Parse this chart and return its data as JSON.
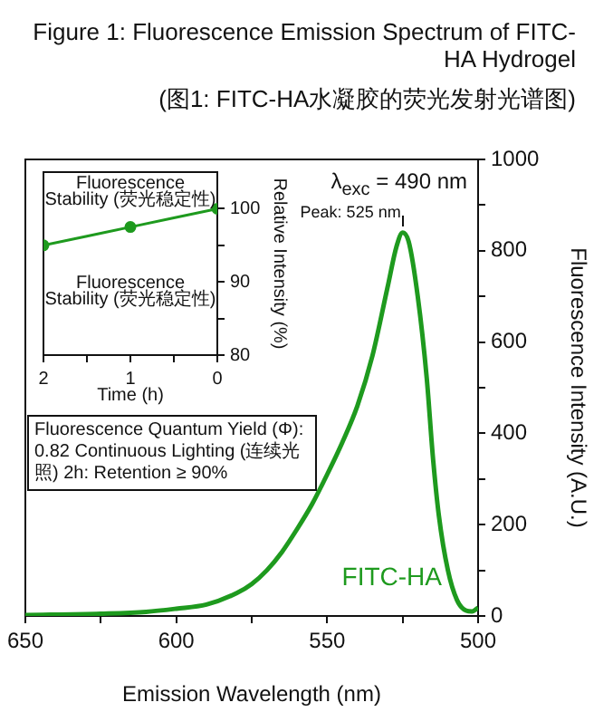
{
  "chart_data": [
    {
      "type": "line",
      "title": "Figure 1: Fluorescence Emission Spectrum of FITC-HA Hydrogel",
      "subtitle": "(图1: FITC-HA水凝胶的荧光发射光谱图)",
      "xlabel": "Emission Wavelength (nm)",
      "ylabel": "Fluorescence Intensity (A.U.)",
      "x": [
        500,
        502,
        504,
        507,
        510,
        513,
        515,
        517,
        520,
        523,
        525,
        527,
        530,
        535,
        540,
        545,
        550,
        555,
        560,
        565,
        570,
        575,
        580,
        590,
        600,
        610,
        625,
        650
      ],
      "series": [
        {
          "name": "FITC-HA",
          "color": "#1e9a1e",
          "values": [
            18,
            10,
            12,
            35,
            100,
            220,
            350,
            520,
            700,
            820,
            840,
            810,
            720,
            570,
            460,
            380,
            310,
            245,
            190,
            140,
            100,
            70,
            50,
            25,
            16,
            9,
            5,
            2
          ]
        }
      ],
      "xlim": [
        650,
        500
      ],
      "xticks": [
        650,
        {
          "value": 625,
          "label": null
        },
        600,
        {
          "value": 575,
          "label": null
        },
        550,
        {
          "value": 525,
          "label": null
        },
        500
      ],
      "ylim": [
        0,
        1000
      ],
      "yticks": [
        0,
        {
          "value": 100,
          "label": null
        },
        200,
        {
          "value": 300,
          "label": null
        },
        400,
        {
          "value": 500,
          "label": null
        },
        600,
        {
          "value": 700,
          "label": null
        },
        800,
        {
          "value": 900,
          "label": null
        },
        1000
      ],
      "annotations": [
        "λ$_{exc}$ = 490 nm",
        {
          "text": "Peak: 525 nm",
          "x": 525,
          "y": 845
        },
        "Fluorescence Quantum Yield (Φ): 0.82 Continuous Lighting (连续光照) 2h: Retention ≥ 90%"
      ]
    },
    {
      "type": "line",
      "xlabel": "Time (h)",
      "ylabel": "Relative Intensity (%)",
      "x": [
        0,
        1,
        2
      ],
      "marker": "circle",
      "series": [
        {
          "color": "#1e9a1e",
          "values": [
            100,
            97.5,
            95
          ]
        }
      ],
      "xlim": [
        2,
        0
      ],
      "xticks": [
        0,
        {
          "value": 0.5,
          "label": null
        },
        1,
        {
          "value": 1.5,
          "label": null
        },
        2
      ],
      "ylim": [
        80,
        105
      ],
      "yticks": [
        80,
        {
          "value": 85,
          "label": null
        },
        90,
        {
          "value": 95,
          "label": null
        },
        100
      ],
      "annotations": [
        "Fluorescence Stability (荧光稳定性)",
        "Fluorescence Stability (荧光稳定性)"
      ]
    }
  ]
}
